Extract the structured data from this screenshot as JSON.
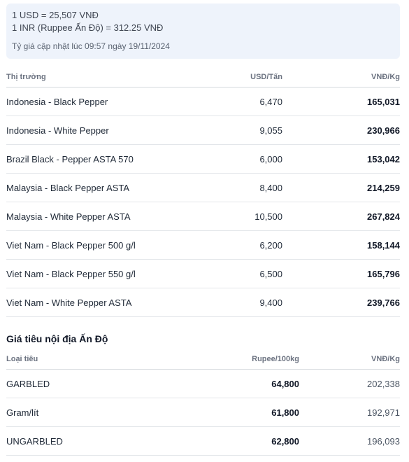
{
  "exchange": {
    "usd": "1 USD = 25,507 VNĐ",
    "inr": "1 INR (Ruppee Ấn Độ) = 312.25 VNĐ",
    "updated": "Tỷ giá cập nhật lúc 09:57 ngày 19/11/2024"
  },
  "world_table": {
    "headers": [
      "Thị trường",
      "USD/Tấn",
      "VNĐ/Kg"
    ],
    "rows": [
      {
        "market": "Indonesia - Black Pepper",
        "usd": "6,470",
        "vnd": "165,031"
      },
      {
        "market": "Indonesia - White Pepper",
        "usd": "9,055",
        "vnd": "230,966"
      },
      {
        "market": "Brazil Black - Pepper ASTA 570",
        "usd": "6,000",
        "vnd": "153,042"
      },
      {
        "market": "Malaysia - Black Pepper ASTA",
        "usd": "8,400",
        "vnd": "214,259"
      },
      {
        "market": "Malaysia - White Pepper ASTA",
        "usd": "10,500",
        "vnd": "267,824"
      },
      {
        "market": "Viet Nam - Black Pepper 500 g/l",
        "usd": "6,200",
        "vnd": "158,144"
      },
      {
        "market": "Viet Nam - Black Pepper 550 g/l",
        "usd": "6,500",
        "vnd": "165,796"
      },
      {
        "market": "Viet Nam - White Pepper ASTA",
        "usd": "9,400",
        "vnd": "239,766"
      }
    ]
  },
  "india": {
    "title": "Giá tiêu nội địa Ấn Độ",
    "headers": [
      "Loại tiêu",
      "Rupee/100kg",
      "VNĐ/Kg"
    ],
    "rows": [
      {
        "type": "GARBLED",
        "rupee": "64,800",
        "vnd": "202,338"
      },
      {
        "type": "Gram/lít",
        "rupee": "61,800",
        "vnd": "192,971"
      },
      {
        "type": "UNGARBLED",
        "rupee": "62,800",
        "vnd": "196,093"
      }
    ]
  }
}
